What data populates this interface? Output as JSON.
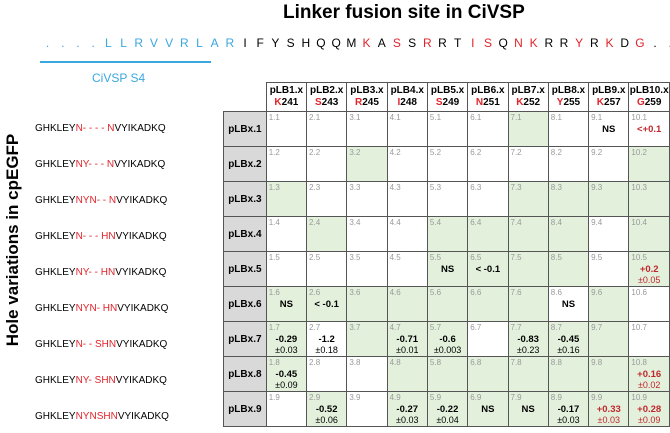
{
  "title": "Linker fusion site in CiVSP",
  "sequence": [
    {
      "t": ".",
      "c": "blue"
    },
    {
      "t": ".",
      "c": "blue"
    },
    {
      "t": ".",
      "c": "blue"
    },
    {
      "t": ".",
      "c": "blue"
    },
    {
      "t": "L",
      "c": "blue"
    },
    {
      "t": "L",
      "c": "blue"
    },
    {
      "t": "R",
      "c": "blue"
    },
    {
      "t": "V",
      "c": "blue"
    },
    {
      "t": "V",
      "c": "blue"
    },
    {
      "t": "R",
      "c": "blue"
    },
    {
      "t": "L",
      "c": "blue"
    },
    {
      "t": "A",
      "c": "blue"
    },
    {
      "t": "R",
      "c": "blue"
    },
    {
      "t": "I",
      "c": "black"
    },
    {
      "t": "F",
      "c": "black"
    },
    {
      "t": "Y",
      "c": "black"
    },
    {
      "t": "S",
      "c": "black"
    },
    {
      "t": "H",
      "c": "black"
    },
    {
      "t": "Q",
      "c": "black"
    },
    {
      "t": "Q",
      "c": "black"
    },
    {
      "t": "M",
      "c": "black"
    },
    {
      "t": "K",
      "c": "red"
    },
    {
      "t": "A",
      "c": "black"
    },
    {
      "t": "S",
      "c": "red"
    },
    {
      "t": "S",
      "c": "black"
    },
    {
      "t": "R",
      "c": "red"
    },
    {
      "t": "R",
      "c": "black"
    },
    {
      "t": "T",
      "c": "black"
    },
    {
      "t": "I",
      "c": "red"
    },
    {
      "t": "S",
      "c": "red"
    },
    {
      "t": "Q",
      "c": "black"
    },
    {
      "t": "N",
      "c": "red"
    },
    {
      "t": "K",
      "c": "red"
    },
    {
      "t": "R",
      "c": "black"
    },
    {
      "t": "R",
      "c": "black"
    },
    {
      "t": "Y",
      "c": "red"
    },
    {
      "t": "R",
      "c": "black"
    },
    {
      "t": "K",
      "c": "red"
    },
    {
      "t": "D",
      "c": "black"
    },
    {
      "t": "G",
      "c": "red"
    },
    {
      "t": ".",
      "c": "black"
    },
    {
      "t": ".",
      "c": "black"
    },
    {
      "t": ".",
      "c": "black"
    }
  ],
  "s4_label": "CiVSP S4",
  "y_label": "Hole variations in cpEGFP",
  "columns": [
    {
      "name": "pLB1.x",
      "res": "K",
      "num": "241"
    },
    {
      "name": "pLB2.x",
      "res": "S",
      "num": "243"
    },
    {
      "name": "pLB3.x",
      "res": "R",
      "num": "245"
    },
    {
      "name": "pLB4.x",
      "res": "I",
      "num": "248"
    },
    {
      "name": "pLB5.x",
      "res": "S",
      "num": "249"
    },
    {
      "name": "pLB6.x",
      "res": "N",
      "num": "251"
    },
    {
      "name": "pLB7.x",
      "res": "K",
      "num": "252"
    },
    {
      "name": "pLB8.x",
      "res": "Y",
      "num": "255"
    },
    {
      "name": "pLB9.x",
      "res": "K",
      "num": "257"
    },
    {
      "name": "pLB10.x",
      "res": "G",
      "num": "259"
    }
  ],
  "rows": [
    {
      "label": "pLBx.1",
      "seq": [
        {
          "t": "GHKLEY",
          "r": false
        },
        {
          "t": "N- - - - N",
          "r": true
        },
        {
          "t": "VYIKADKQ",
          "r": false
        }
      ],
      "cells": [
        {
          "id": "1.1",
          "g": false
        },
        {
          "id": "2.1",
          "g": false
        },
        {
          "id": "3.1",
          "g": false
        },
        {
          "id": "4.1",
          "g": false
        },
        {
          "id": "5.1",
          "g": false
        },
        {
          "id": "6.1",
          "g": false
        },
        {
          "id": "7.1",
          "g": true
        },
        {
          "id": "8.1",
          "g": false
        },
        {
          "id": "9.1",
          "g": false,
          "v": "NS"
        },
        {
          "id": "10.1",
          "g": false,
          "v": "<+0.1",
          "vr": true
        }
      ]
    },
    {
      "label": "pLBx.2",
      "seq": [
        {
          "t": "GHKLEY",
          "r": false
        },
        {
          "t": "NY- - - N",
          "r": true
        },
        {
          "t": "VYIKADKQ",
          "r": false
        }
      ],
      "cells": [
        {
          "id": "1.2",
          "g": false
        },
        {
          "id": "2.2",
          "g": false
        },
        {
          "id": "3.2",
          "g": true
        },
        {
          "id": "4.2",
          "g": false
        },
        {
          "id": "5.2",
          "g": false
        },
        {
          "id": "6.2",
          "g": false
        },
        {
          "id": "7.2",
          "g": false
        },
        {
          "id": "8.2",
          "g": false
        },
        {
          "id": "9.2",
          "g": false
        },
        {
          "id": "10.2",
          "g": true
        }
      ]
    },
    {
      "label": "pLBx.3",
      "seq": [
        {
          "t": "GHKLEY",
          "r": false
        },
        {
          "t": "NYN- - N",
          "r": true
        },
        {
          "t": "VYIKADKQ",
          "r": false
        }
      ],
      "cells": [
        {
          "id": "1.3",
          "g": true
        },
        {
          "id": "2.3",
          "g": false
        },
        {
          "id": "3.3",
          "g": false
        },
        {
          "id": "4.3",
          "g": false
        },
        {
          "id": "5.3",
          "g": false
        },
        {
          "id": "6.3",
          "g": false
        },
        {
          "id": "7.3",
          "g": true
        },
        {
          "id": "8.3",
          "g": true
        },
        {
          "id": "9.3",
          "g": true
        },
        {
          "id": "10.3",
          "g": true
        }
      ]
    },
    {
      "label": "pLBx.4",
      "seq": [
        {
          "t": "GHKLEY",
          "r": false
        },
        {
          "t": "N- - - HN",
          "r": true
        },
        {
          "t": "VYIKADKQ",
          "r": false
        }
      ],
      "cells": [
        {
          "id": "1.4",
          "g": false
        },
        {
          "id": "2.4",
          "g": true
        },
        {
          "id": "3.4",
          "g": false
        },
        {
          "id": "4.4",
          "g": false
        },
        {
          "id": "5.4",
          "g": true
        },
        {
          "id": "6.4",
          "g": true
        },
        {
          "id": "7.4",
          "g": true
        },
        {
          "id": "8.4",
          "g": true
        },
        {
          "id": "9.4",
          "g": false
        },
        {
          "id": "10.4",
          "g": true
        }
      ]
    },
    {
      "label": "pLBx.5",
      "seq": [
        {
          "t": "GHKLEY",
          "r": false
        },
        {
          "t": "NY- - HN",
          "r": true
        },
        {
          "t": "VYIKADKQ",
          "r": false
        }
      ],
      "cells": [
        {
          "id": "1.5",
          "g": false
        },
        {
          "id": "2.5",
          "g": false
        },
        {
          "id": "3.5",
          "g": false
        },
        {
          "id": "4.5",
          "g": false
        },
        {
          "id": "5.5",
          "g": true,
          "v": "NS"
        },
        {
          "id": "6.5",
          "g": true,
          "v": "< -0.1"
        },
        {
          "id": "7.5",
          "g": true
        },
        {
          "id": "8.5",
          "g": true
        },
        {
          "id": "9.5",
          "g": false
        },
        {
          "id": "10.5",
          "g": true,
          "v": "+0.2",
          "vr": true,
          "e": "±0.05",
          "er": true
        }
      ]
    },
    {
      "label": "pLBx.6",
      "seq": [
        {
          "t": "GHKLEY",
          "r": false
        },
        {
          "t": "NYN- HN",
          "r": true
        },
        {
          "t": "VYIKADKQ",
          "r": false
        }
      ],
      "cells": [
        {
          "id": "1.6",
          "g": true,
          "v": "NS"
        },
        {
          "id": "2.6",
          "g": true,
          "v": "< -0.1"
        },
        {
          "id": "3.6",
          "g": true
        },
        {
          "id": "4.6",
          "g": true
        },
        {
          "id": "5.6",
          "g": true
        },
        {
          "id": "6.6",
          "g": true
        },
        {
          "id": "7.6",
          "g": true
        },
        {
          "id": "8.6",
          "g": false,
          "v": "NS"
        },
        {
          "id": "9.6",
          "g": true
        },
        {
          "id": "10.6",
          "g": false
        }
      ]
    },
    {
      "label": "pLBx.7",
      "seq": [
        {
          "t": "GHKLEY",
          "r": false
        },
        {
          "t": "N- - SHN",
          "r": true
        },
        {
          "t": "VYIKADKQ",
          "r": false
        }
      ],
      "cells": [
        {
          "id": "1.7",
          "g": true,
          "v": "-0.29",
          "e": "±0.03"
        },
        {
          "id": "2.7",
          "g": false,
          "v": "-1.2",
          "e": "±0.18"
        },
        {
          "id": "3.7",
          "g": true
        },
        {
          "id": "4.7",
          "g": true,
          "v": "-0.71",
          "e": "±0.01"
        },
        {
          "id": "5.7",
          "g": true,
          "v": "-0.6",
          "e": "±0.003"
        },
        {
          "id": "6.7",
          "g": false
        },
        {
          "id": "7.7",
          "g": true,
          "v": "-0.83",
          "e": "±0.23"
        },
        {
          "id": "8.7",
          "g": true,
          "v": "-0.45",
          "e": "±0.16"
        },
        {
          "id": "9.7",
          "g": true
        },
        {
          "id": "10.7",
          "g": false
        }
      ]
    },
    {
      "label": "pLBx.8",
      "seq": [
        {
          "t": "GHKLEY",
          "r": false
        },
        {
          "t": "NY- SHN",
          "r": true
        },
        {
          "t": "VYIKADKQ",
          "r": false
        }
      ],
      "cells": [
        {
          "id": "1.8",
          "g": true,
          "v": "-0.45",
          "e": "±0.09"
        },
        {
          "id": "2.8",
          "g": false
        },
        {
          "id": "3.8",
          "g": false
        },
        {
          "id": "4.8",
          "g": true
        },
        {
          "id": "5.8",
          "g": true
        },
        {
          "id": "6.8",
          "g": true
        },
        {
          "id": "7.8",
          "g": true
        },
        {
          "id": "8.8",
          "g": true
        },
        {
          "id": "9.8",
          "g": true
        },
        {
          "id": "10.8",
          "g": true,
          "v": "+0.16",
          "vr": true,
          "e": "±0.02",
          "er": true
        }
      ]
    },
    {
      "label": "pLBx.9",
      "seq": [
        {
          "t": "GHKLEY",
          "r": false
        },
        {
          "t": "NYNSHN",
          "r": true
        },
        {
          "t": "VYIKADKQ",
          "r": false
        }
      ],
      "cells": [
        {
          "id": "1.9",
          "g": false
        },
        {
          "id": "2.9",
          "g": true,
          "v": "-0.52",
          "e": "±0.06"
        },
        {
          "id": "3.9",
          "g": false
        },
        {
          "id": "4.9",
          "g": true,
          "v": "-0.27",
          "e": "±0.03"
        },
        {
          "id": "5.9",
          "g": true,
          "v": "-0.22",
          "e": "±0.04"
        },
        {
          "id": "6.9",
          "g": true,
          "v": "NS"
        },
        {
          "id": "7.9",
          "g": true,
          "v": "NS"
        },
        {
          "id": "8.9",
          "g": true,
          "v": "-0.17",
          "e": "±0.03"
        },
        {
          "id": "9.9",
          "g": true,
          "v": "+0.33",
          "vr": true,
          "e": "±0.03",
          "er": true
        },
        {
          "id": "10.9",
          "g": true,
          "v": "+0.28",
          "vr": true,
          "e": "±0.09",
          "er": true
        }
      ]
    }
  ]
}
